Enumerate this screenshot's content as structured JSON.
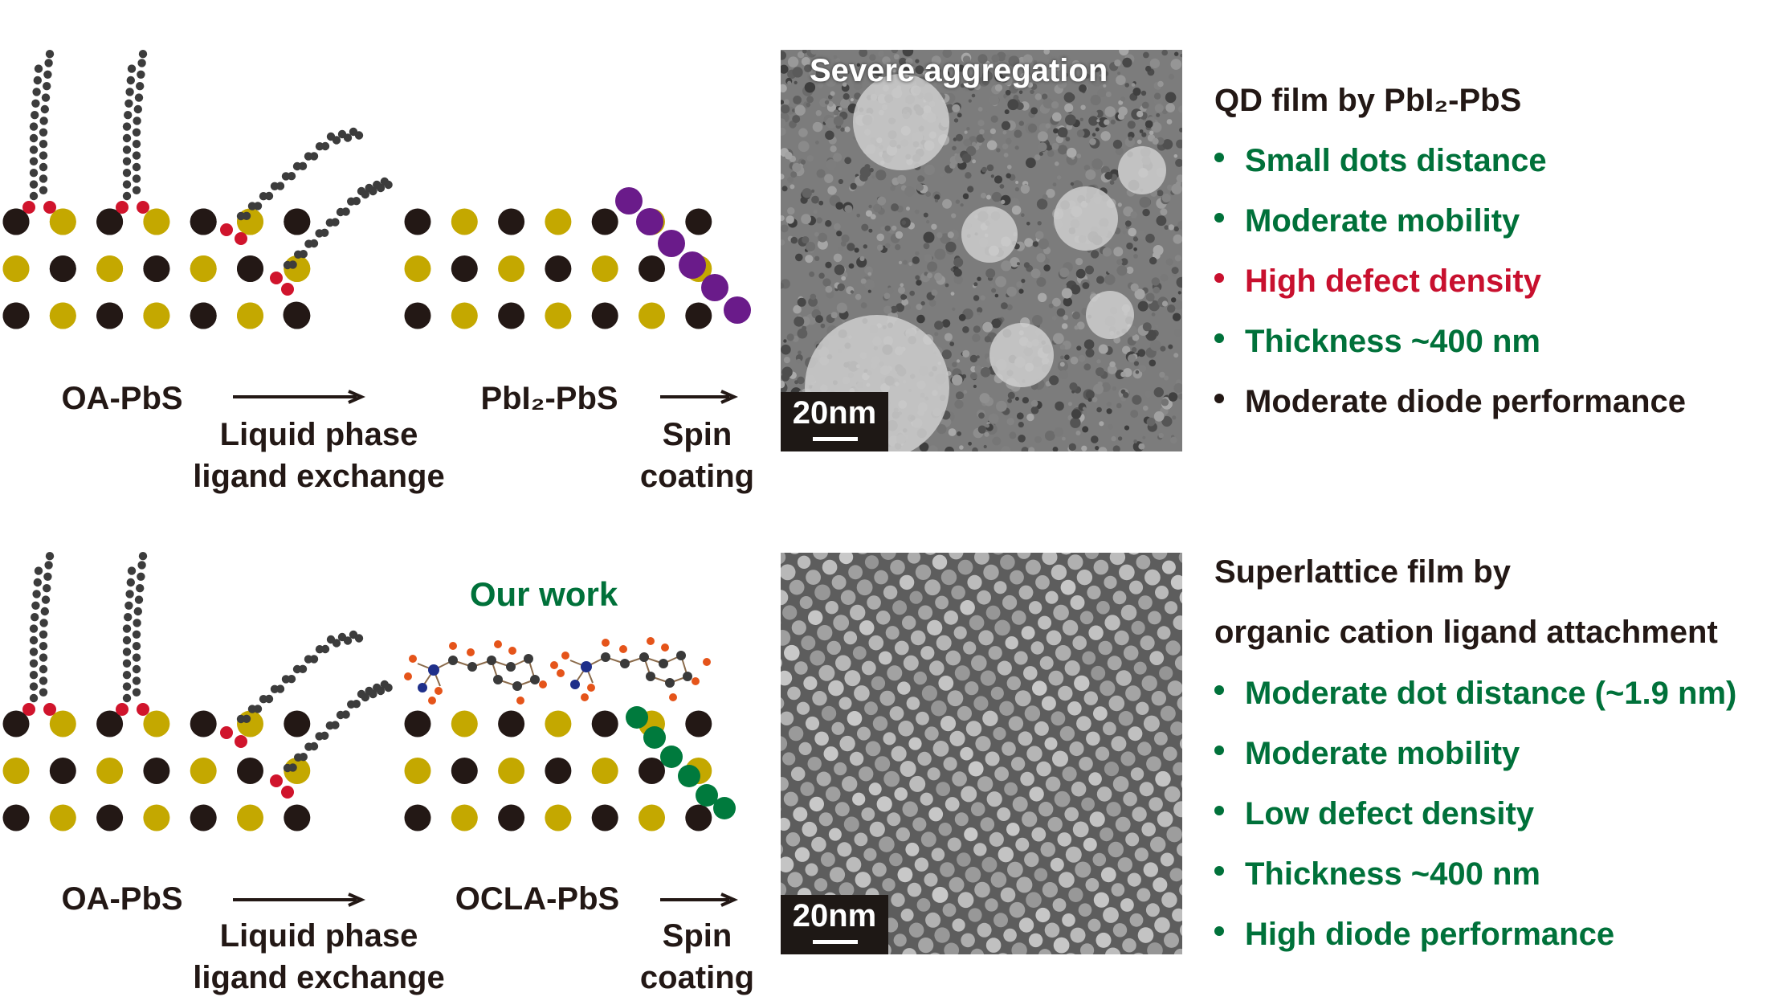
{
  "colors": {
    "pb": "#231815",
    "s": "#c4a800",
    "o": "#d0142c",
    "chain": "#3c3c3c",
    "pbi2": "#6a1b8a",
    "ocla": "#007a3d",
    "green_text": "#00713a",
    "red_text": "#c8102e",
    "dark_text": "#231815"
  },
  "top_row": {
    "start_label": "OA-PbS",
    "step1_label": [
      "Liquid phase",
      "ligand exchange"
    ],
    "mid_label": "PbI₂-PbS",
    "step2_label": [
      "Spin",
      "coating"
    ],
    "tem_title": "Severe aggregation",
    "scale_label": "20nm",
    "film_title": [
      "QD film by PbI₂-PbS"
    ],
    "properties": [
      {
        "text": "Small dots distance",
        "tone": "green"
      },
      {
        "text": "Moderate mobility",
        "tone": "green"
      },
      {
        "text": "High defect density",
        "tone": "red"
      },
      {
        "text": "Thickness ~400 nm",
        "tone": "green"
      },
      {
        "text": "Moderate diode performance",
        "tone": "dark"
      }
    ]
  },
  "bottom_row": {
    "highlight": "Our work",
    "start_label": "OA-PbS",
    "step1_label": [
      "Liquid phase",
      "ligand exchange"
    ],
    "mid_label": "OCLA-PbS",
    "step2_label": [
      "Spin",
      "coating"
    ],
    "scale_label": "20nm",
    "film_title": [
      "Superlattice film by",
      "organic cation ligand attachment"
    ],
    "properties": [
      {
        "text": "Moderate dot distance (~1.9 nm)",
        "tone": "green"
      },
      {
        "text": "Moderate mobility",
        "tone": "green"
      },
      {
        "text": "Low defect density",
        "tone": "green"
      },
      {
        "text": "Thickness ~400 nm",
        "tone": "green"
      },
      {
        "text": "High diode performance",
        "tone": "green"
      }
    ]
  }
}
